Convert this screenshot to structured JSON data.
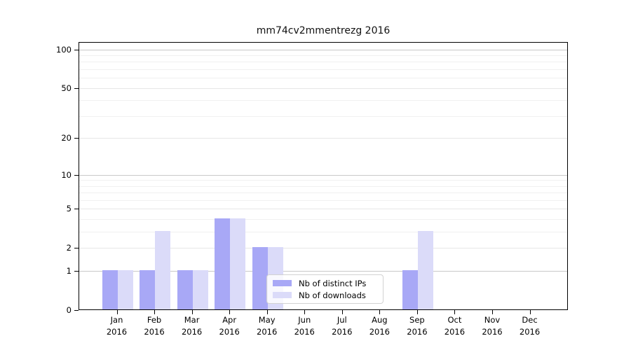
{
  "window": {
    "background": "#ffffff"
  },
  "chart_data": {
    "type": "bar",
    "title": "mm74cv2mmentrezg 2016",
    "x_categories": [
      "Jan 2016",
      "Feb 2016",
      "Mar 2016",
      "Apr 2016",
      "May 2016",
      "Jun 2016",
      "Jul 2016",
      "Aug 2016",
      "Sep 2016",
      "Oct 2016",
      "Nov 2016",
      "Dec 2016"
    ],
    "series": [
      {
        "name": "Nb of distinct IPs",
        "color": "#a8a8f6",
        "values": [
          1,
          1,
          1,
          4,
          2,
          0,
          0,
          0,
          1,
          0,
          0,
          0
        ]
      },
      {
        "name": "Nb of downloads",
        "color": "#dbdbf9",
        "values": [
          1,
          3,
          1,
          4,
          2,
          0,
          0,
          0,
          3,
          0,
          0,
          0
        ]
      }
    ],
    "yscale": "log1p",
    "ylim": [
      0,
      115
    ],
    "y_tick_labels": [
      0,
      1,
      2,
      5,
      10,
      20,
      50,
      100
    ],
    "y_decade_gridlines": [
      1,
      10,
      100
    ],
    "y_mid_gridlines": [
      2,
      5,
      20,
      50
    ],
    "y_minor_gridlines": [
      3,
      4,
      6,
      7,
      8,
      9,
      30,
      40,
      60,
      70,
      80,
      90
    ],
    "grid": true,
    "legend_position": "bottom-center",
    "colors": {
      "spine": "#000000",
      "grid_decade": "#c8c8c8",
      "grid_mid": "#e7e7e7",
      "grid_minor": "#f0f0f0"
    }
  }
}
